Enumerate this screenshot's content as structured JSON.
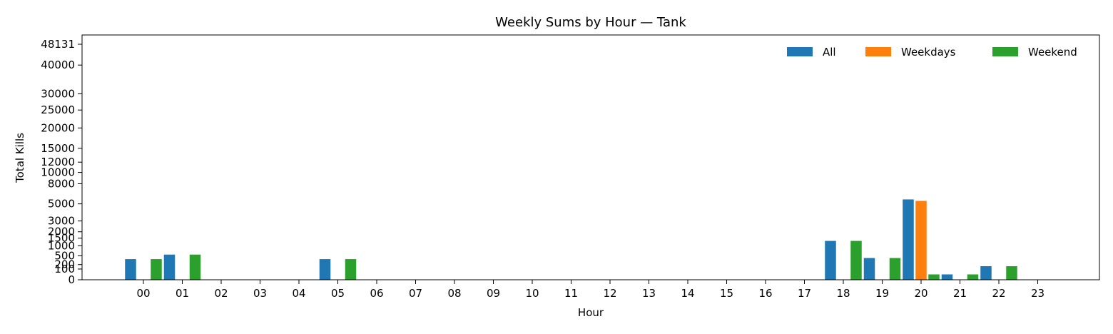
{
  "chart_data": {
    "type": "bar",
    "title": "Weekly Sums by Hour — Tank",
    "xlabel": "Hour",
    "ylabel": "Total Kills",
    "y_scale": "sqrt",
    "ylim": [
      0,
      52000
    ],
    "y_ticks": [
      0,
      100,
      200,
      500,
      1000,
      1500,
      2000,
      3000,
      5000,
      8000,
      10000,
      12000,
      15000,
      20000,
      25000,
      30000,
      40000,
      48131
    ],
    "y_tick_labels": [
      "0",
      "100",
      "200",
      "500",
      "1000",
      "1500",
      "2000",
      "3000",
      "5000",
      "8000",
      "10000",
      "12000",
      "15000",
      "20000",
      "25000",
      "30000",
      "40000",
      "48131"
    ],
    "categories": [
      "00",
      "01",
      "02",
      "03",
      "04",
      "05",
      "06",
      "07",
      "08",
      "09",
      "10",
      "11",
      "12",
      "13",
      "14",
      "15",
      "16",
      "17",
      "18",
      "19",
      "20",
      "21",
      "22",
      "23"
    ],
    "series": [
      {
        "name": "All",
        "color": "#1f77b4",
        "values": [
          370,
          550,
          0,
          0,
          0,
          370,
          0,
          0,
          0,
          0,
          0,
          0,
          0,
          0,
          0,
          0,
          0,
          0,
          1310,
          410,
          5600,
          25,
          160,
          0
        ]
      },
      {
        "name": "Weekdays",
        "color": "#ff7f0e",
        "values": [
          0,
          0,
          0,
          0,
          0,
          0,
          0,
          0,
          0,
          0,
          0,
          0,
          0,
          0,
          0,
          0,
          0,
          0,
          0,
          0,
          5400,
          0,
          0,
          0
        ]
      },
      {
        "name": "Weekend",
        "color": "#2ca02c",
        "values": [
          370,
          550,
          0,
          0,
          0,
          370,
          0,
          0,
          0,
          0,
          0,
          0,
          0,
          0,
          0,
          0,
          0,
          0,
          1310,
          410,
          25,
          25,
          160,
          0
        ]
      }
    ],
    "legend": {
      "position": "top-right",
      "columns": 3
    },
    "grid": false
  }
}
